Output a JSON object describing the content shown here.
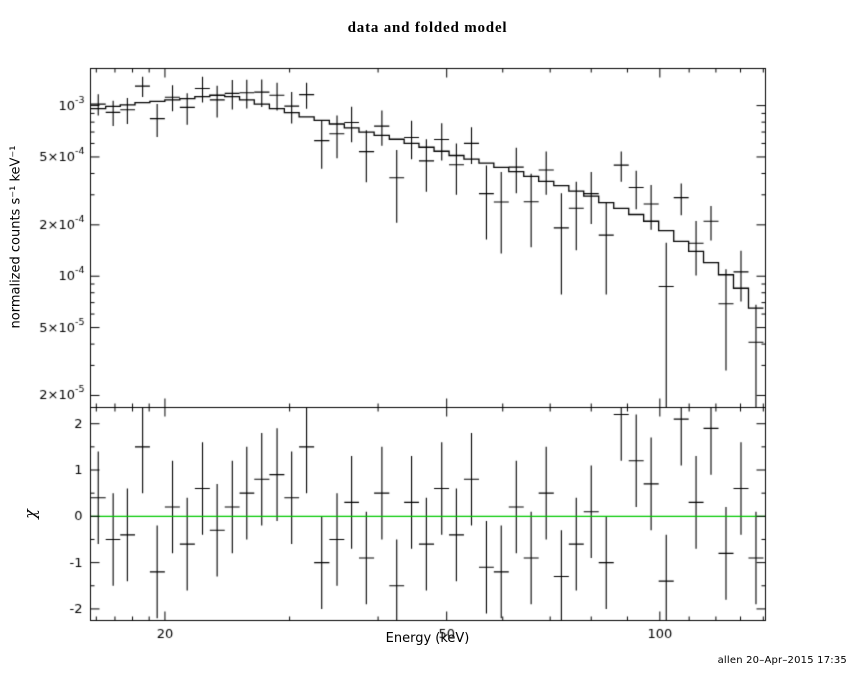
{
  "chart_data": {
    "type": "scatter",
    "subtype": "xspec-spectrum-with-residuals",
    "title": "data and folded model",
    "annotation": "allen 20–Apr–2015 17:35",
    "x_axis": {
      "label": "Energy (keV)",
      "scale": "log",
      "min": 15.7,
      "max": 141,
      "major_ticks": [
        {
          "value": 20,
          "label": "20"
        },
        {
          "value": 50,
          "label": "50"
        },
        {
          "value": 100,
          "label": "100"
        }
      ],
      "minor_ticks": [
        16,
        17,
        18,
        19,
        30,
        40,
        60,
        70,
        80,
        90,
        110,
        120,
        130,
        140
      ]
    },
    "top_panel": {
      "ylabel": "normalized counts s⁻¹ keV⁻¹",
      "scale": "log",
      "min": 1.7e-05,
      "max": 0.00165,
      "major_ticks": [
        {
          "value": 0.001,
          "base": "10",
          "exp": "-3"
        },
        {
          "value": 0.0005,
          "base": "5×10",
          "exp": "-4"
        },
        {
          "value": 0.0002,
          "base": "2×10",
          "exp": "-4"
        },
        {
          "value": 0.0001,
          "base": "10",
          "exp": "-4"
        },
        {
          "value": 5e-05,
          "base": "5×10",
          "exp": "-5"
        },
        {
          "value": 2e-05,
          "base": "2×10",
          "exp": "-5"
        }
      ],
      "minor_ticks": [
        3e-05,
        4e-05,
        6e-05,
        7e-05,
        8e-05,
        9e-05,
        0.0003,
        0.0004,
        0.0006,
        0.0007,
        0.0008,
        0.0009
      ]
    },
    "bottom_panel": {
      "ylabel": "χ",
      "scale": "linear",
      "min": -2.25,
      "max": 2.35,
      "zero_line_value": 0,
      "zero_line_color": "#00c800",
      "major_ticks": [
        {
          "value": -2,
          "label": "-2"
        },
        {
          "value": -1,
          "label": "-1"
        },
        {
          "value": 0,
          "label": "0"
        },
        {
          "value": 1,
          "label": "1"
        },
        {
          "value": 2,
          "label": "2"
        }
      ],
      "minor_ticks": [
        -1.5,
        -0.5,
        0.5,
        1.5
      ]
    },
    "series": {
      "energy_kev": [
        16.1,
        16.9,
        17.7,
        18.6,
        19.5,
        20.5,
        21.5,
        22.6,
        23.7,
        24.9,
        26.1,
        27.4,
        28.8,
        30.2,
        31.7,
        33.3,
        35.0,
        36.7,
        38.5,
        40.5,
        42.5,
        44.6,
        46.8,
        49.2,
        51.6,
        54.2,
        56.9,
        59.7,
        62.7,
        65.8,
        69.1,
        72.6,
        76.2,
        80.0,
        84.0,
        88.2,
        92.6,
        97.2,
        102.1,
        107.2,
        112.5,
        118.1,
        124.0,
        130.2,
        136.7
      ],
      "counts": [
        0.00102,
        0.000913,
        0.000945,
        0.0013,
        0.000839,
        0.00112,
        0.000977,
        0.00126,
        0.00108,
        0.00118,
        0.00119,
        0.0012,
        0.00115,
        0.000993,
        0.00116,
        0.000623,
        0.000684,
        0.000796,
        0.000537,
        0.000758,
        0.000378,
        0.00065,
        0.000474,
        0.000633,
        0.00045,
        0.000601,
        0.000305,
        0.000272,
        0.000436,
        0.000273,
        0.000419,
        0.000192,
        0.00025,
        0.000305,
        0.000174,
        0.000448,
        0.000331,
        0.000265,
        8.7e-05,
        0.000289,
        0.000156,
        0.00021,
        6.9e-05,
        0.000106,
        4.1e-05
      ],
      "counts_err": [
        0.000144,
        0.000154,
        0.000164,
        0.000175,
        0.000184,
        0.000194,
        0.000205,
        0.000217,
        0.000228,
        0.000231,
        0.000227,
        0.00022,
        0.000213,
        0.000208,
        0.000201,
        0.000197,
        0.000192,
        0.000187,
        0.000181,
        0.000177,
        0.000172,
        0.000166,
        0.000161,
        0.000156,
        0.00015,
        0.000146,
        0.000141,
        0.000136,
        0.00013,
        0.000125,
        0.000119,
        0.000114,
        0.000108,
        0.000103,
        9.6e-05,
        9e-05,
        8.4e-05,
        7.8e-05,
        7e-05,
        6.1e-05,
        5.5e-05,
        4.8e-05,
        4.1e-05,
        3.5e-05,
        2.7e-05
      ],
      "model": [
        0.00096,
        0.00099,
        0.00101,
        0.00104,
        0.00106,
        0.00108,
        0.0011,
        0.00113,
        0.00115,
        0.00113,
        0.00108,
        0.00102,
        0.00096,
        0.00091,
        0.00086,
        0.00082,
        0.00078,
        0.00074,
        0.0007,
        0.00067,
        0.000635,
        0.0006,
        0.00057,
        0.00054,
        0.00051,
        0.000485,
        0.00046,
        0.000435,
        0.00041,
        0.000385,
        0.00036,
        0.00034,
        0.000315,
        0.000295,
        0.00027,
        0.00025,
        0.00023,
        0.00021,
        0.000185,
        0.00016,
        0.00014,
        0.00012,
        0.000102,
        8.5e-05,
        6.5e-05
      ],
      "chi": [
        0.4,
        -0.5,
        -0.4,
        1.5,
        -1.2,
        0.2,
        -0.6,
        0.6,
        -0.3,
        0.2,
        0.5,
        0.8,
        0.9,
        0.4,
        1.5,
        -1.0,
        -0.5,
        0.3,
        -0.9,
        0.5,
        -1.5,
        0.3,
        -0.6,
        0.6,
        -0.4,
        0.8,
        -1.1,
        -1.2,
        0.2,
        -0.9,
        0.5,
        -1.3,
        -0.6,
        0.1,
        -1.0,
        2.2,
        1.2,
        0.7,
        -1.4,
        2.1,
        0.3,
        1.9,
        -0.8,
        0.6,
        -0.9
      ],
      "chi_err": 1.0
    },
    "colors": {
      "data": "#000000",
      "model": "#000000",
      "zero_line": "#00c800"
    }
  }
}
